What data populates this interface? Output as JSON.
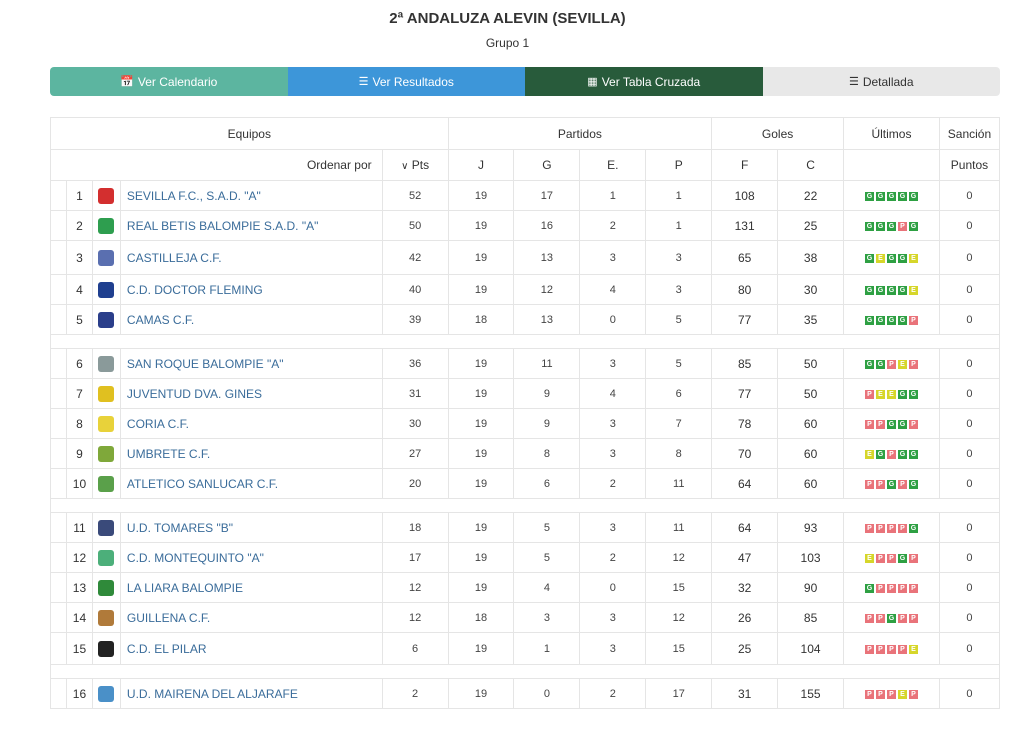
{
  "header": {
    "title": "2ª ANDALUZA ALEVIN (SEVILLA)",
    "subtitle": "Grupo 1"
  },
  "tabs": [
    {
      "label": "Ver Calendario",
      "icon": "calendar-icon"
    },
    {
      "label": "Ver Resultados",
      "icon": "list-icon"
    },
    {
      "label": "Ver Tabla Cruzada",
      "icon": "grid-icon"
    },
    {
      "label": "Detallada",
      "icon": "detail-list-icon"
    }
  ],
  "table": {
    "groups": {
      "equipos": "Equipos",
      "partidos": "Partidos",
      "goles": "Goles",
      "ultimos": "Últimos",
      "sancion": "Sanción"
    },
    "sub": {
      "ordenar": "Ordenar por",
      "pts": "Pts",
      "j": "J",
      "g": "G",
      "e": "E.",
      "p": "P",
      "f": "F",
      "c": "C",
      "puntos": "Puntos"
    },
    "rows": [
      {
        "pos": "1",
        "team": "SEVILLA F.C., S.A.D. \"A\"",
        "color": "#d32f2f",
        "pts": "52",
        "j": "19",
        "g": "17",
        "e": "1",
        "p": "1",
        "f": "108",
        "c": "22",
        "last": [
          "G",
          "G",
          "G",
          "G",
          "G"
        ],
        "san": "0"
      },
      {
        "pos": "2",
        "team": "REAL BETIS BALOMPIE S.A.D. \"A\"",
        "color": "#2e9e4f",
        "pts": "50",
        "j": "19",
        "g": "16",
        "e": "2",
        "p": "1",
        "f": "131",
        "c": "25",
        "last": [
          "G",
          "G",
          "G",
          "P",
          "G"
        ],
        "san": "0"
      },
      {
        "pos": "3",
        "team": "CASTILLEJA C.F.",
        "color": "#5a6fb0",
        "pts": "42",
        "j": "19",
        "g": "13",
        "e": "3",
        "p": "3",
        "f": "65",
        "c": "38",
        "last": [
          "G",
          "E",
          "G",
          "G",
          "E"
        ],
        "san": "0"
      },
      {
        "pos": "4",
        "team": "C.D. DOCTOR FLEMING",
        "color": "#1f3f8f",
        "pts": "40",
        "j": "19",
        "g": "12",
        "e": "4",
        "p": "3",
        "f": "80",
        "c": "30",
        "last": [
          "G",
          "G",
          "G",
          "G",
          "E"
        ],
        "san": "0"
      },
      {
        "pos": "5",
        "team": "CAMAS C.F.",
        "color": "#2a3e8a",
        "pts": "39",
        "j": "18",
        "g": "13",
        "e": "0",
        "p": "5",
        "f": "77",
        "c": "35",
        "last": [
          "G",
          "G",
          "G",
          "G",
          "P"
        ],
        "san": "0"
      },
      {
        "pos": "6",
        "team": "SAN ROQUE BALOMPIE \"A\"",
        "color": "#8a9a9a",
        "pts": "36",
        "j": "19",
        "g": "11",
        "e": "3",
        "p": "5",
        "f": "85",
        "c": "50",
        "last": [
          "G",
          "G",
          "P",
          "E",
          "P"
        ],
        "san": "0"
      },
      {
        "pos": "7",
        "team": "JUVENTUD DVA. GINES",
        "color": "#e0c020",
        "pts": "31",
        "j": "19",
        "g": "9",
        "e": "4",
        "p": "6",
        "f": "77",
        "c": "50",
        "last": [
          "P",
          "E",
          "E",
          "G",
          "G"
        ],
        "san": "0"
      },
      {
        "pos": "8",
        "team": "CORIA C.F.",
        "color": "#e8d23a",
        "pts": "30",
        "j": "19",
        "g": "9",
        "e": "3",
        "p": "7",
        "f": "78",
        "c": "60",
        "last": [
          "P",
          "P",
          "G",
          "G",
          "P"
        ],
        "san": "0"
      },
      {
        "pos": "9",
        "team": "UMBRETE C.F.",
        "color": "#7fa83a",
        "pts": "27",
        "j": "19",
        "g": "8",
        "e": "3",
        "p": "8",
        "f": "70",
        "c": "60",
        "last": [
          "E",
          "G",
          "P",
          "G",
          "G"
        ],
        "san": "0"
      },
      {
        "pos": "10",
        "team": "ATLETICO SANLUCAR C.F.",
        "color": "#5aa04a",
        "pts": "20",
        "j": "19",
        "g": "6",
        "e": "2",
        "p": "11",
        "f": "64",
        "c": "60",
        "last": [
          "P",
          "P",
          "G",
          "P",
          "G"
        ],
        "san": "0"
      },
      {
        "pos": "11",
        "team": "U.D. TOMARES \"B\"",
        "color": "#3a4a7a",
        "pts": "18",
        "j": "19",
        "g": "5",
        "e": "3",
        "p": "11",
        "f": "64",
        "c": "93",
        "last": [
          "P",
          "P",
          "P",
          "P",
          "G"
        ],
        "san": "0"
      },
      {
        "pos": "12",
        "team": "C.D. MONTEQUINTO \"A\"",
        "color": "#4caf7a",
        "pts": "17",
        "j": "19",
        "g": "5",
        "e": "2",
        "p": "12",
        "f": "47",
        "c": "103",
        "last": [
          "E",
          "P",
          "P",
          "G",
          "P"
        ],
        "san": "0"
      },
      {
        "pos": "13",
        "team": "LA LIARA BALOMPIE",
        "color": "#2f8a3a",
        "pts": "12",
        "j": "19",
        "g": "4",
        "e": "0",
        "p": "15",
        "f": "32",
        "c": "90",
        "last": [
          "G",
          "P",
          "P",
          "P",
          "P"
        ],
        "san": "0"
      },
      {
        "pos": "14",
        "team": "GUILLENA C.F.",
        "color": "#b07a3a",
        "pts": "12",
        "j": "18",
        "g": "3",
        "e": "3",
        "p": "12",
        "f": "26",
        "c": "85",
        "last": [
          "P",
          "P",
          "G",
          "P",
          "P"
        ],
        "san": "0"
      },
      {
        "pos": "15",
        "team": "C.D. EL PILAR",
        "color": "#222222",
        "pts": "6",
        "j": "19",
        "g": "1",
        "e": "3",
        "p": "15",
        "f": "25",
        "c": "104",
        "last": [
          "P",
          "P",
          "P",
          "P",
          "E"
        ],
        "san": "0"
      },
      {
        "pos": "16",
        "team": "U.D. MAIRENA DEL ALJARAFE",
        "color": "#4a90c8",
        "pts": "2",
        "j": "19",
        "g": "0",
        "e": "2",
        "p": "17",
        "f": "31",
        "c": "155",
        "last": [
          "P",
          "P",
          "P",
          "E",
          "P"
        ],
        "san": "0"
      }
    ]
  }
}
